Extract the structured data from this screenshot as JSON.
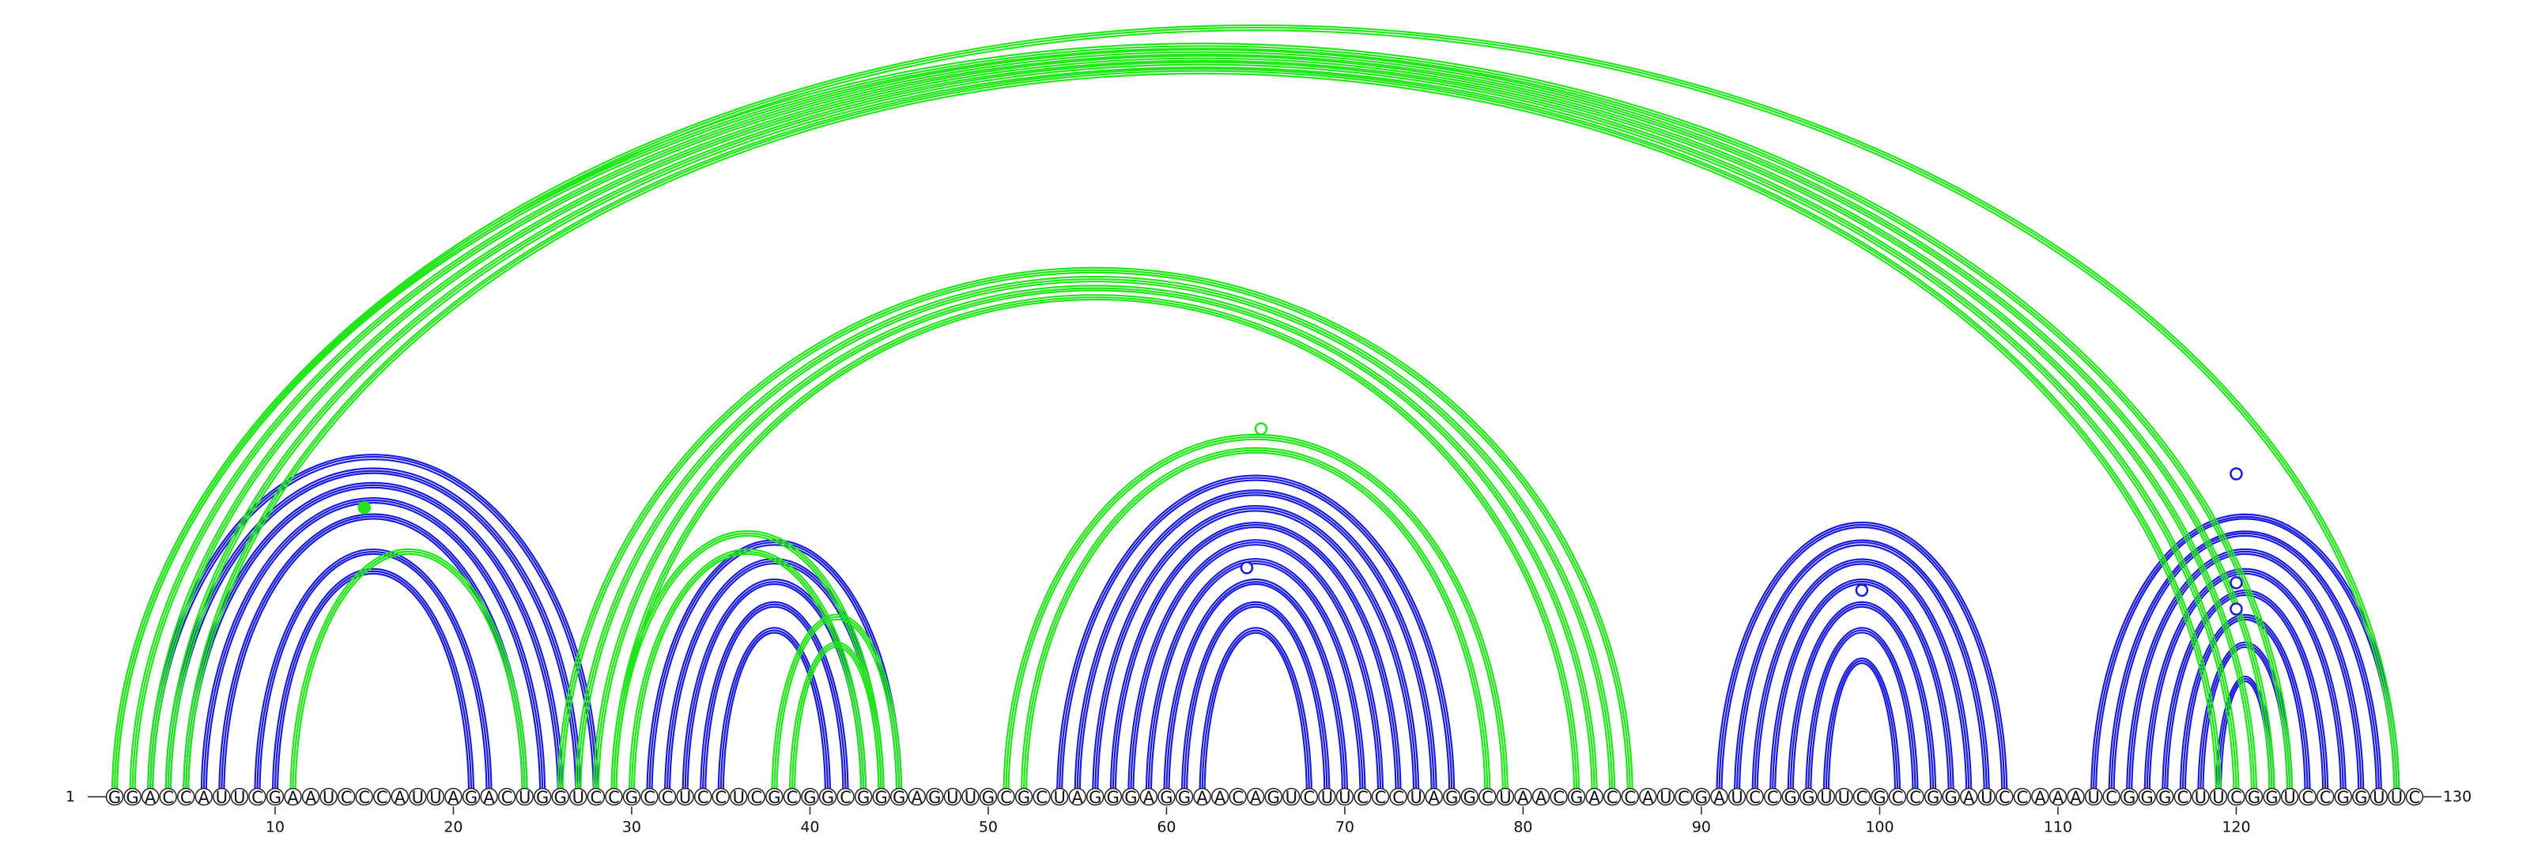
{
  "sequence": "GGACCAUUCGAAUCCCAUUAGACUGGUCCGCCUCCUCGCGGCGGGAGUUGCGCUAGGGAGGAACAGUCUUCCCUAGGCUAACGACCAUCGAUCCGGUUCGCCGGAUCCAAAUCGGGCUUCGGUCCGGUUC",
  "start_label": "1",
  "end_label": "130",
  "ticks": [
    10,
    20,
    30,
    40,
    50,
    60,
    70,
    80,
    90,
    100,
    110,
    120
  ],
  "colors": {
    "blue": "#1a1adc",
    "green": "#22e61a"
  },
  "blue_pairs": [
    [
      3,
      28
    ],
    [
      4,
      27
    ],
    [
      5,
      26
    ],
    [
      6,
      25
    ],
    [
      7,
      24
    ],
    [
      9,
      22
    ],
    [
      10,
      21
    ],
    [
      31,
      45
    ],
    [
      32,
      44
    ],
    [
      33,
      43
    ],
    [
      34,
      42
    ],
    [
      35,
      41
    ],
    [
      54,
      76
    ],
    [
      55,
      75
    ],
    [
      56,
      74
    ],
    [
      57,
      73
    ],
    [
      58,
      72
    ],
    [
      59,
      71
    ],
    [
      60,
      70
    ],
    [
      61,
      69
    ],
    [
      62,
      68
    ],
    [
      91,
      107
    ],
    [
      92,
      106
    ],
    [
      93,
      105
    ],
    [
      94,
      104
    ],
    [
      95,
      103
    ],
    [
      96,
      102
    ],
    [
      97,
      101
    ],
    [
      112,
      129
    ],
    [
      113,
      128
    ],
    [
      114,
      127
    ],
    [
      115,
      126
    ],
    [
      116,
      125
    ],
    [
      117,
      124
    ],
    [
      118,
      123
    ],
    [
      119,
      122
    ]
  ],
  "green_pairs": [
    [
      1,
      123
    ],
    [
      2,
      122
    ],
    [
      3,
      121
    ],
    [
      4,
      120
    ],
    [
      5,
      119
    ],
    [
      1,
      129
    ],
    [
      11,
      24
    ],
    [
      26,
      86
    ],
    [
      27,
      85
    ],
    [
      28,
      84
    ],
    [
      29,
      83
    ],
    [
      29,
      44
    ],
    [
      30,
      43
    ],
    [
      38,
      45
    ],
    [
      39,
      44
    ],
    [
      51,
      79
    ],
    [
      52,
      78
    ]
  ],
  "markers": [
    {
      "position": 65.3,
      "height": 0.98,
      "color": "green",
      "filled": false
    },
    {
      "position": 15,
      "height": 0.77,
      "color": "green",
      "filled": true
    },
    {
      "position": 64.5,
      "height": 0.61,
      "color": "blue",
      "filled": false
    },
    {
      "position": 99,
      "height": 0.55,
      "color": "blue",
      "filled": false
    },
    {
      "position": 120,
      "height": 0.86,
      "color": "blue",
      "filled": false
    },
    {
      "position": 120,
      "height": 0.57,
      "color": "blue",
      "filled": false
    },
    {
      "position": 120,
      "height": 0.5,
      "color": "blue",
      "filled": false
    }
  ]
}
